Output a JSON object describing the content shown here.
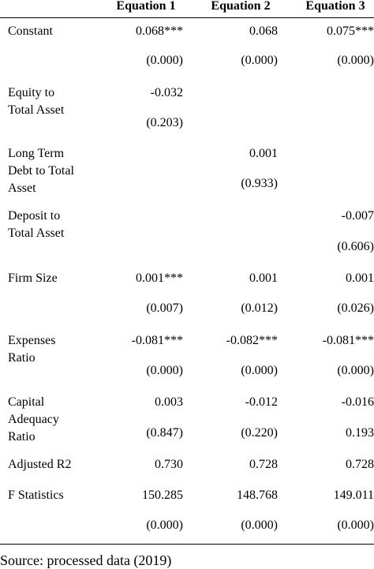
{
  "table": {
    "columns": [
      "Equation 1",
      "Equation 2",
      "Equation 3"
    ],
    "rows": [
      {
        "label": [
          "Constant"
        ],
        "values": [
          "0.068***",
          "0.068",
          "0.075***"
        ],
        "pvalues": [
          "(0.000)",
          "(0.000)",
          "(0.000)"
        ]
      },
      {
        "label": [
          "Equity to",
          "Total Asset"
        ],
        "values": [
          "-0.032",
          null,
          null
        ],
        "pvalues": [
          "(0.203)",
          null,
          null
        ]
      },
      {
        "label": [
          "Long Term",
          "Debt to Total",
          "Asset"
        ],
        "values": [
          null,
          "0.001",
          null
        ],
        "pvalues": [
          null,
          "(0.933)",
          null
        ]
      },
      {
        "label": [
          "Deposit to",
          "Total Asset"
        ],
        "values": [
          null,
          null,
          "-0.007"
        ],
        "pvalues": [
          null,
          null,
          "(0.606)"
        ]
      },
      {
        "label": [
          "Firm Size"
        ],
        "values": [
          "0.001***",
          "0.001",
          "0.001"
        ],
        "pvalues": [
          "(0.007)",
          "(0.012)",
          "(0.026)"
        ]
      },
      {
        "label": [
          "Expenses",
          "Ratio"
        ],
        "values": [
          "-0.081***",
          "-0.082***",
          "-0.081***"
        ],
        "pvalues": [
          "(0.000)",
          "(0.000)",
          "(0.000)"
        ]
      },
      {
        "label": [
          "Capital",
          "Adequacy",
          "Ratio"
        ],
        "values": [
          "0.003",
          "-0.012",
          "-0.016"
        ],
        "pvalues": [
          "(0.847)",
          "(0.220)",
          "0.193"
        ]
      },
      {
        "label": [
          "Adjusted R2"
        ],
        "values": [
          "0.730",
          "0.728",
          "0.728"
        ]
      },
      {
        "label": [
          "F Statistics"
        ],
        "values": [
          "150.285",
          "148.768",
          "149.011"
        ],
        "pvalues": [
          "(0.000)",
          "(0.000)",
          "(0.000)"
        ]
      }
    ],
    "source": "Source: processed data (2019)"
  }
}
